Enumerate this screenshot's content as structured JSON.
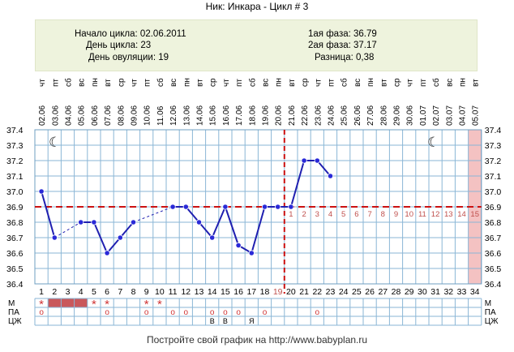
{
  "page": {
    "title": "Ник: Инкара - Цикл # 3",
    "footer": "Постройте свой график на http://www.babyplan.ru"
  },
  "info": {
    "cycle_start": "Начало цикла: 02.06.2011",
    "cycle_day": "День цикла: 23",
    "ovulation_day": "День овуляции: 19",
    "phase1": "1ая фаза: 36.79",
    "phase2": "2ая фаза: 37.17",
    "difference": "Разница: 0,38"
  },
  "chart_data": {
    "type": "line",
    "days": [
      "1",
      "2",
      "3",
      "4",
      "5",
      "6",
      "7",
      "8",
      "9",
      "10",
      "11",
      "12",
      "13",
      "14",
      "15",
      "16",
      "17",
      "18",
      "19",
      "20",
      "21",
      "22",
      "23",
      "24",
      "25",
      "26",
      "27",
      "28",
      "29",
      "30",
      "31",
      "32",
      "33",
      "34"
    ],
    "dates": [
      "02.06",
      "03.06",
      "04.06",
      "05.06",
      "06.06",
      "07.06",
      "08.06",
      "09.06",
      "10.06",
      "11.06",
      "12.06",
      "13.06",
      "14.06",
      "15.06",
      "16.06",
      "17.06",
      "18.06",
      "19.06",
      "20.06",
      "21.06",
      "22.06",
      "23.06",
      "24.06",
      "25.06",
      "26.06",
      "27.06",
      "28.06",
      "29.06",
      "30.06",
      "01.07",
      "02.07",
      "03.07",
      "04.07",
      "05.07"
    ],
    "weekdays": [
      "чт",
      "пт",
      "сб",
      "вс",
      "пн",
      "вт",
      "ср",
      "чт",
      "пт",
      "сб",
      "вс",
      "пн",
      "вт",
      "ср",
      "чт",
      "пт",
      "сб",
      "вс",
      "пн",
      "вт",
      "ср",
      "чт",
      "пт",
      "сб",
      "вс",
      "пн",
      "вт",
      "ср",
      "чт",
      "пт",
      "сб",
      "вс",
      "пн",
      "вт"
    ],
    "temperatures": [
      37.0,
      36.7,
      null,
      36.8,
      36.8,
      36.6,
      36.7,
      36.8,
      null,
      null,
      36.9,
      36.9,
      36.8,
      36.7,
      36.9,
      36.65,
      36.6,
      36.9,
      36.9,
      36.9,
      37.2,
      37.2,
      37.1
    ],
    "y_ticks": [
      "37.4",
      "37.3",
      "37.2",
      "37.1",
      "37.0",
      "36.9",
      "36.8",
      "36.7",
      "36.6",
      "36.5",
      "36.4"
    ],
    "ylim": [
      36.4,
      37.4
    ],
    "coverline": 36.9,
    "ovulation_day": 19,
    "post_ovulation_labels": [
      "1",
      "2",
      "3",
      "4",
      "5",
      "6",
      "7",
      "8",
      "9",
      "10",
      "11",
      "12",
      "13",
      "14",
      "15"
    ],
    "rows": {
      "labels": [
        "М",
        "ПА",
        "ЦЖ"
      ],
      "m_star_days": [
        1,
        5,
        6,
        9,
        10
      ],
      "m_bar_days": [
        2,
        3,
        4
      ],
      "pa_circle_days": [
        1,
        6,
        9,
        11,
        12,
        14,
        15,
        16,
        18,
        22
      ],
      "czh_days": [
        14,
        15,
        17
      ],
      "czh_texts": [
        "В",
        "В",
        "Я"
      ],
      "star_glyph": "*",
      "circle_glyph": "o"
    },
    "moon_glyph": "☾",
    "colors": {
      "line": "#1f1fb0",
      "point": "#2a2ad8",
      "coverline": "#cc1111",
      "grid": "#8ab6d6",
      "axis_red": "#c0504d",
      "highlight": "#f4c2c2",
      "m_bar": "#c9585b",
      "m_star": "#d03535"
    }
  }
}
